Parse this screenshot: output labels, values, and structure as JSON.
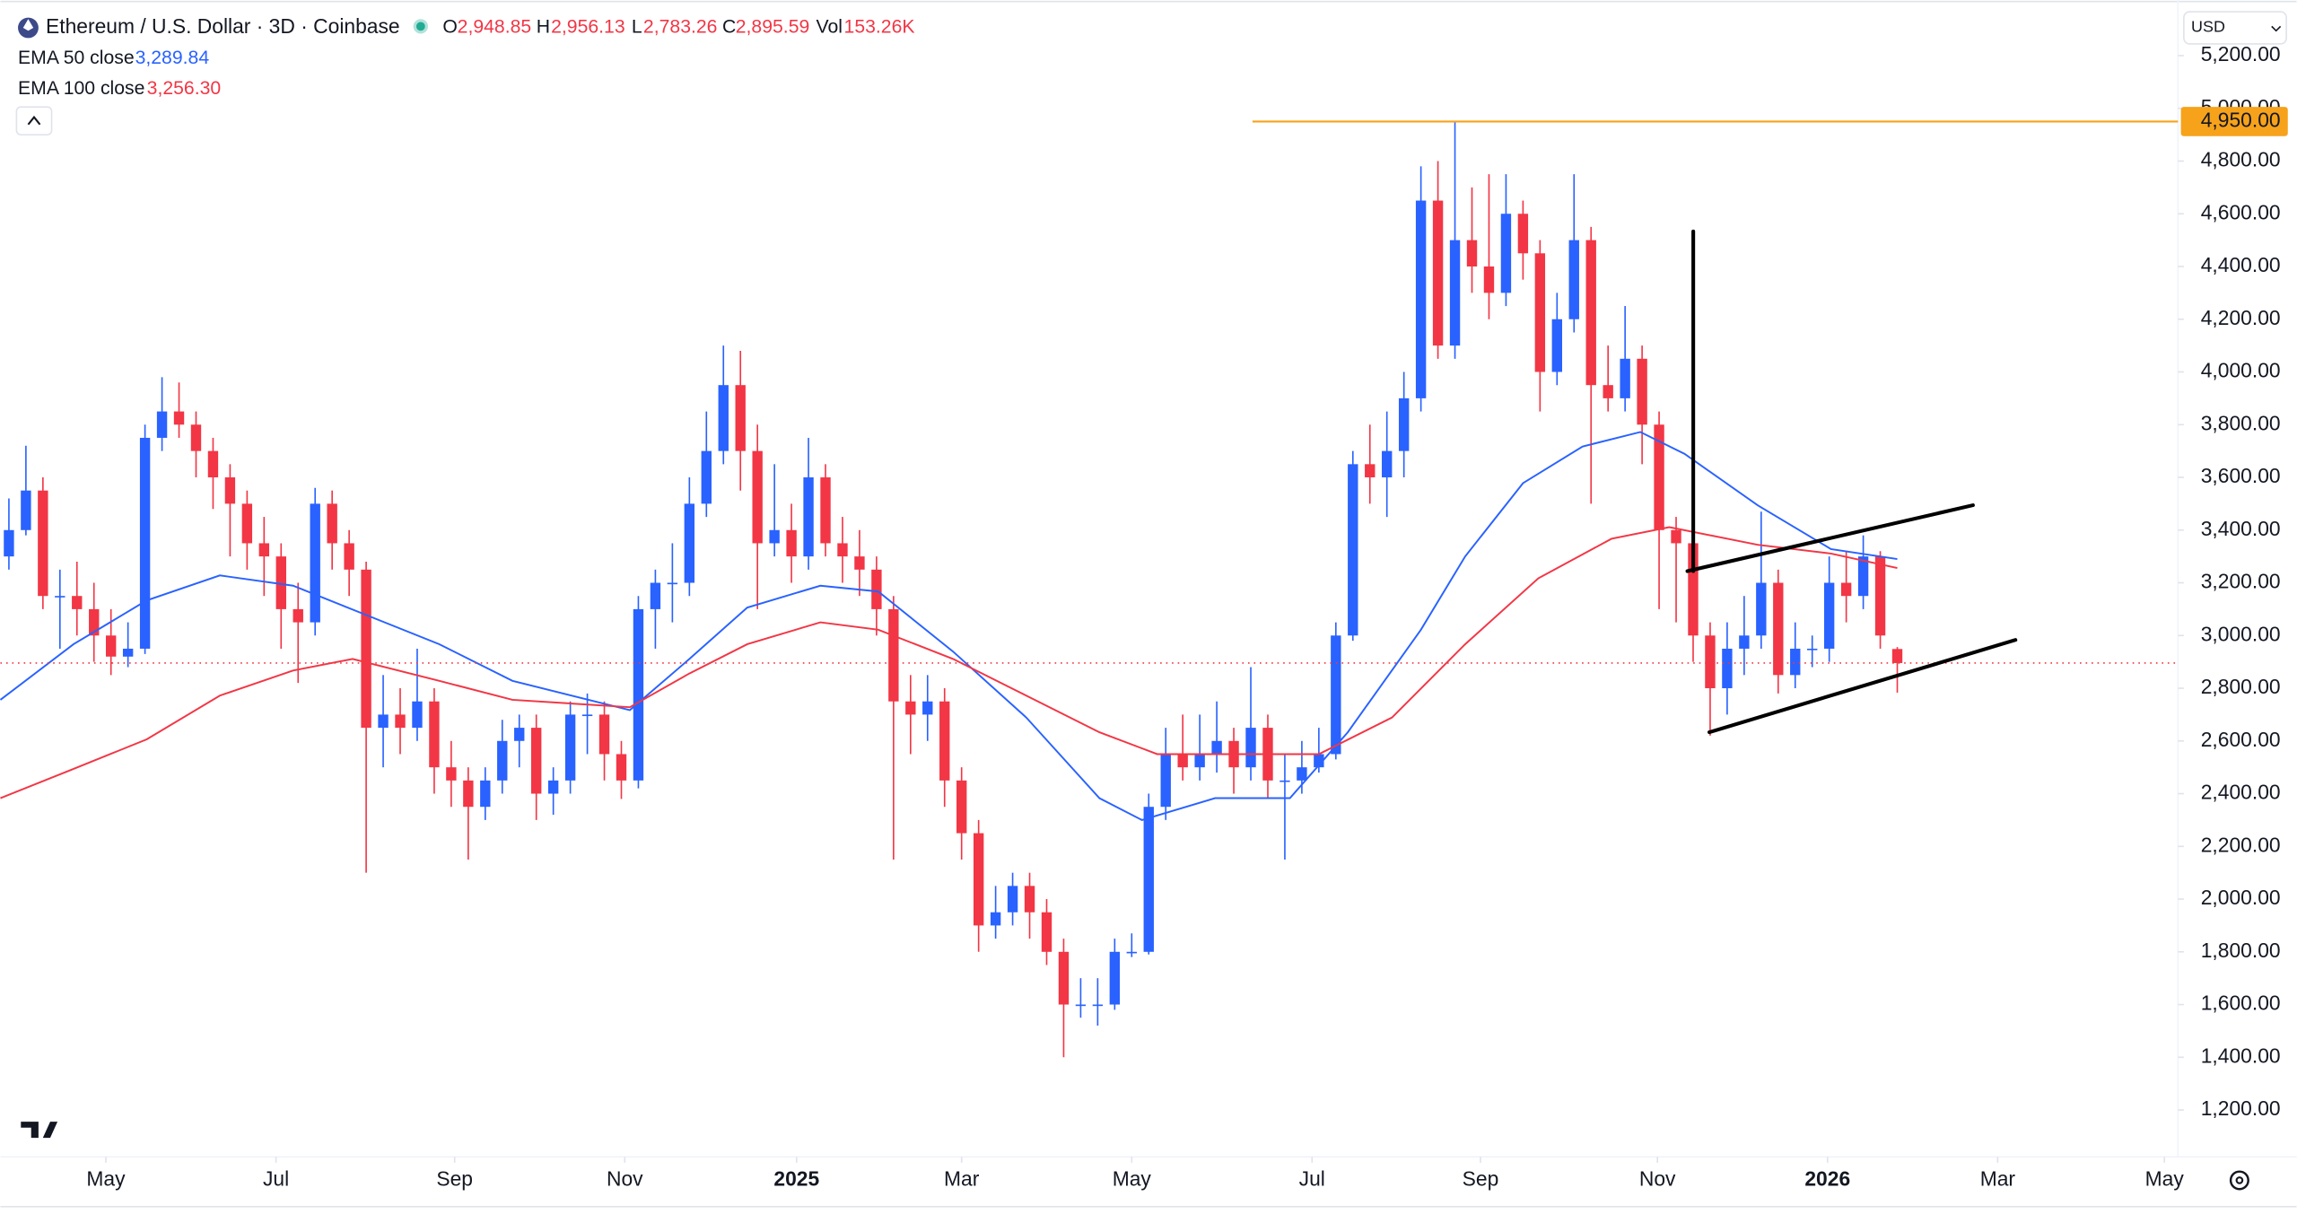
{
  "header": {
    "title": "Ethereum / U.S. Dollar · 3D · Coinbase",
    "o_label": "O",
    "open": "2,948.85",
    "h_label": "H",
    "high": "2,956.13",
    "l_label": "L",
    "low": "2,783.26",
    "c_label": "C",
    "close": "2,895.59",
    "vol_label": "Vol",
    "volume": "153.26K",
    "currency": "USD"
  },
  "indicators": [
    {
      "name": "EMA 50 close",
      "value": "3,289.84"
    },
    {
      "name": "EMA 100 close",
      "value": "3,256.30"
    }
  ],
  "chart_data": {
    "type": "candlestick",
    "up_color": "#2962ff",
    "down_color": "#f23645",
    "xlim": [
      0,
      128
    ],
    "ylim": [
      1022,
      5411
    ],
    "xticks": [
      {
        "value": 6.2,
        "label": "May"
      },
      {
        "value": 16.2,
        "label": "Jul"
      },
      {
        "value": 26.7,
        "label": "Sep"
      },
      {
        "value": 36.7,
        "label": "Nov"
      },
      {
        "value": 46.8,
        "label": "2025",
        "bold": true
      },
      {
        "value": 56.5,
        "label": "Mar"
      },
      {
        "value": 66.5,
        "label": "May"
      },
      {
        "value": 77.1,
        "label": "Jul"
      },
      {
        "value": 87.0,
        "label": "Sep"
      },
      {
        "value": 97.4,
        "label": "Nov"
      },
      {
        "value": 107.4,
        "label": "2026",
        "bold": true
      },
      {
        "value": 117.4,
        "label": "Mar"
      },
      {
        "value": 127.2,
        "label": "May"
      }
    ],
    "yticks": [
      {
        "value": 1200,
        "label": "1,200.00"
      },
      {
        "value": 1400,
        "label": "1,400.00"
      },
      {
        "value": 1600,
        "label": "1,600.00"
      },
      {
        "value": 1800,
        "label": "1,800.00"
      },
      {
        "value": 2000,
        "label": "2,000.00"
      },
      {
        "value": 2200,
        "label": "2,200.00"
      },
      {
        "value": 2400,
        "label": "2,400.00"
      },
      {
        "value": 2600,
        "label": "2,600.00"
      },
      {
        "value": 2800,
        "label": "2,800.00"
      },
      {
        "value": 3000,
        "label": "3,000.00"
      },
      {
        "value": 3200,
        "label": "3,200.00"
      },
      {
        "value": 3400,
        "label": "3,400.00"
      },
      {
        "value": 3600,
        "label": "3,600.00"
      },
      {
        "value": 3800,
        "label": "3,800.00"
      },
      {
        "value": 4000,
        "label": "4,000.00"
      },
      {
        "value": 4200,
        "label": "4,200.00"
      },
      {
        "value": 4400,
        "label": "4,400.00"
      },
      {
        "value": 4600,
        "label": "4,600.00"
      },
      {
        "value": 4800,
        "label": "4,800.00"
      },
      {
        "value": 5000,
        "label": "5,000.00"
      },
      {
        "value": 5200,
        "label": "5,200.00"
      }
    ],
    "resistance": {
      "value": 4950,
      "label": "4,950.00",
      "color": "#f7a21b"
    },
    "price_line_color": "#f23645",
    "candles": [
      [
        3300,
        3520,
        3250,
        3400
      ],
      [
        3400,
        3720,
        3380,
        3550
      ],
      [
        3550,
        3600,
        3100,
        3150
      ],
      [
        3150,
        3250,
        2950,
        3150
      ],
      [
        3150,
        3280,
        3000,
        3100
      ],
      [
        3100,
        3200,
        2900,
        3000
      ],
      [
        3000,
        3100,
        2850,
        2920
      ],
      [
        2920,
        3050,
        2880,
        2950
      ],
      [
        2950,
        3800,
        2930,
        3750
      ],
      [
        3750,
        3980,
        3700,
        3850
      ],
      [
        3850,
        3960,
        3750,
        3800
      ],
      [
        3800,
        3850,
        3600,
        3700
      ],
      [
        3700,
        3750,
        3480,
        3600
      ],
      [
        3600,
        3650,
        3300,
        3500
      ],
      [
        3500,
        3550,
        3250,
        3350
      ],
      [
        3350,
        3450,
        3150,
        3300
      ],
      [
        3300,
        3350,
        2950,
        3100
      ],
      [
        3100,
        3200,
        2820,
        3050
      ],
      [
        3050,
        3560,
        3000,
        3500
      ],
      [
        3500,
        3550,
        3250,
        3350
      ],
      [
        3350,
        3400,
        3150,
        3250
      ],
      [
        3250,
        3280,
        2100,
        2650
      ],
      [
        2650,
        2850,
        2500,
        2700
      ],
      [
        2700,
        2800,
        2550,
        2650
      ],
      [
        2650,
        2950,
        2600,
        2750
      ],
      [
        2750,
        2800,
        2400,
        2500
      ],
      [
        2500,
        2600,
        2350,
        2450
      ],
      [
        2450,
        2500,
        2150,
        2350
      ],
      [
        2350,
        2500,
        2300,
        2450
      ],
      [
        2450,
        2680,
        2400,
        2600
      ],
      [
        2600,
        2700,
        2500,
        2650
      ],
      [
        2650,
        2700,
        2300,
        2400
      ],
      [
        2400,
        2500,
        2320,
        2450
      ],
      [
        2450,
        2750,
        2400,
        2700
      ],
      [
        2700,
        2780,
        2550,
        2700
      ],
      [
        2700,
        2750,
        2450,
        2550
      ],
      [
        2550,
        2600,
        2380,
        2450
      ],
      [
        2450,
        3150,
        2420,
        3100
      ],
      [
        3100,
        3250,
        2950,
        3200
      ],
      [
        3200,
        3350,
        3050,
        3200
      ],
      [
        3200,
        3600,
        3150,
        3500
      ],
      [
        3500,
        3850,
        3450,
        3700
      ],
      [
        3700,
        4100,
        3650,
        3950
      ],
      [
        3950,
        4080,
        3550,
        3700
      ],
      [
        3700,
        3800,
        3100,
        3350
      ],
      [
        3350,
        3650,
        3300,
        3400
      ],
      [
        3400,
        3500,
        3200,
        3300
      ],
      [
        3300,
        3750,
        3250,
        3600
      ],
      [
        3600,
        3650,
        3300,
        3350
      ],
      [
        3350,
        3450,
        3200,
        3300
      ],
      [
        3300,
        3400,
        3150,
        3250
      ],
      [
        3250,
        3300,
        3000,
        3100
      ],
      [
        3100,
        3150,
        2150,
        2750
      ],
      [
        2750,
        2850,
        2550,
        2700
      ],
      [
        2700,
        2850,
        2600,
        2750
      ],
      [
        2750,
        2800,
        2350,
        2450
      ],
      [
        2450,
        2500,
        2150,
        2250
      ],
      [
        2250,
        2300,
        1800,
        1900
      ],
      [
        1900,
        2050,
        1850,
        1950
      ],
      [
        1950,
        2100,
        1900,
        2050
      ],
      [
        2050,
        2100,
        1850,
        1950
      ],
      [
        1950,
        2000,
        1750,
        1800
      ],
      [
        1800,
        1850,
        1400,
        1600
      ],
      [
        1600,
        1700,
        1550,
        1600
      ],
      [
        1600,
        1700,
        1520,
        1600
      ],
      [
        1600,
        1850,
        1580,
        1800
      ],
      [
        1800,
        1870,
        1780,
        1800
      ],
      [
        1800,
        2400,
        1790,
        2350
      ],
      [
        2350,
        2650,
        2300,
        2550
      ],
      [
        2550,
        2700,
        2450,
        2500
      ],
      [
        2500,
        2700,
        2450,
        2550
      ],
      [
        2550,
        2750,
        2480,
        2600
      ],
      [
        2600,
        2650,
        2400,
        2500
      ],
      [
        2500,
        2880,
        2450,
        2650
      ],
      [
        2650,
        2700,
        2380,
        2450
      ],
      [
        2450,
        2550,
        2150,
        2450
      ],
      [
        2450,
        2600,
        2400,
        2500
      ],
      [
        2500,
        2650,
        2480,
        2550
      ],
      [
        2550,
        3050,
        2530,
        3000
      ],
      [
        3000,
        3700,
        2980,
        3650
      ],
      [
        3650,
        3800,
        3500,
        3600
      ],
      [
        3600,
        3850,
        3450,
        3700
      ],
      [
        3700,
        4000,
        3600,
        3900
      ],
      [
        3900,
        4780,
        3850,
        4650
      ],
      [
        4650,
        4800,
        4050,
        4100
      ],
      [
        4100,
        4950,
        4050,
        4500
      ],
      [
        4500,
        4700,
        4300,
        4400
      ],
      [
        4400,
        4750,
        4200,
        4300
      ],
      [
        4300,
        4750,
        4250,
        4600
      ],
      [
        4600,
        4650,
        4350,
        4450
      ],
      [
        4450,
        4500,
        3850,
        4000
      ],
      [
        4000,
        4300,
        3950,
        4200
      ],
      [
        4200,
        4750,
        4150,
        4500
      ],
      [
        4500,
        4550,
        3500,
        3950
      ],
      [
        3950,
        4100,
        3850,
        3900
      ],
      [
        3900,
        4250,
        3850,
        4050
      ],
      [
        4050,
        4100,
        3650,
        3800
      ],
      [
        3800,
        3850,
        3100,
        3400
      ],
      [
        3400,
        3450,
        3050,
        3350
      ],
      [
        3350,
        3400,
        2900,
        3000
      ],
      [
        3000,
        3050,
        2620,
        2800
      ],
      [
        2800,
        3050,
        2700,
        2950
      ],
      [
        2950,
        3150,
        2850,
        3000
      ],
      [
        3000,
        3470,
        2950,
        3200
      ],
      [
        3200,
        3250,
        2780,
        2850
      ],
      [
        2850,
        3050,
        2800,
        2950
      ],
      [
        2950,
        3000,
        2880,
        2950
      ],
      [
        2950,
        3300,
        2900,
        3200
      ],
      [
        3200,
        3320,
        3050,
        3150
      ],
      [
        3150,
        3380,
        3100,
        3300
      ],
      [
        3300,
        3320,
        2950,
        3000
      ],
      [
        2948.85,
        2956.13,
        2783.26,
        2895.59
      ]
    ],
    "series": [
      {
        "name": "EMA 50 close",
        "color": "#2962ff",
        "x": [
          0,
          4.3,
          8.6,
          12.9,
          17.2,
          21.5,
          25.8,
          30.1,
          37.0,
          40.5,
          43.9,
          48.2,
          51.6,
          56.0,
          60.3,
          64.6,
          67.1,
          71.4,
          75.8,
          79.2,
          83.5,
          86.1,
          89.5,
          93.0,
          96.4,
          99.0,
          103.3,
          107.6,
          111.5
        ],
        "values": [
          2756,
          2967,
          3133,
          3228,
          3189,
          3078,
          2967,
          2828,
          2717,
          2911,
          3106,
          3189,
          3167,
          2939,
          2689,
          2383,
          2300,
          2383,
          2383,
          2633,
          3022,
          3300,
          3578,
          3717,
          3772,
          3689,
          3494,
          3328,
          3290
        ]
      },
      {
        "name": "EMA 100 close",
        "color": "#f23645",
        "x": [
          0,
          4.3,
          8.6,
          12.9,
          17.2,
          20.7,
          25.8,
          30.1,
          37.0,
          40.5,
          43.9,
          48.2,
          51.6,
          56.0,
          60.3,
          64.6,
          68.0,
          73.2,
          77.5,
          81.8,
          86.1,
          90.4,
          94.7,
          98.1,
          103.3,
          107.6,
          111.5
        ],
        "values": [
          2383,
          2494,
          2606,
          2772,
          2867,
          2911,
          2828,
          2756,
          2728,
          2856,
          2967,
          3050,
          3022,
          2911,
          2772,
          2633,
          2550,
          2550,
          2550,
          2689,
          2967,
          3217,
          3367,
          3411,
          3344,
          3311,
          3256
        ]
      }
    ]
  }
}
